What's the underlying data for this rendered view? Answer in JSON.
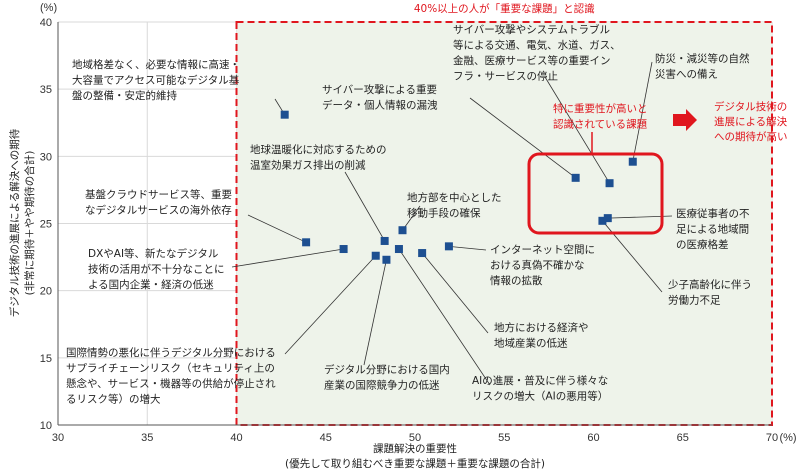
{
  "chart_data": {
    "type": "scatter",
    "xlabel_lines": [
      "課題解決の重要性",
      "(優先して取り組むべき重要な課題＋重要な課題の合計)"
    ],
    "ylabel_lines": [
      "デジタル技術の進展による解決への期待",
      "(非常に期待＋やや期待の合計)"
    ],
    "x_unit": "(%)",
    "y_unit": "(%)",
    "xlim": [
      30,
      70
    ],
    "ylim": [
      10,
      40
    ],
    "x_ticks": [
      "30",
      "35",
      "40",
      "45",
      "50",
      "55",
      "60",
      "65",
      "70"
    ],
    "y_ticks": [
      "10",
      "15",
      "20",
      "25",
      "30",
      "35",
      "40"
    ],
    "highlight_region_label": "40%以上の人が「重要な課題」と認識",
    "highlight_box_label": [
      "特に重要性が高いと",
      "認識されている課題"
    ],
    "arrow_label": [
      "デジタル技術の",
      "進展による解決",
      "への期待が高い"
    ],
    "points": [
      {
        "x": 42.7,
        "y": 33.1,
        "label": [
          "地域格差なく、必要な情報に高速・",
          "大容量でアクセス可能なデジタル基",
          "盤の整備・安定的維持"
        ]
      },
      {
        "x": 43.9,
        "y": 23.6,
        "label": [
          "基盤クラウドサービス等、重要",
          "なデジタルサービスの海外依存"
        ]
      },
      {
        "x": 46.0,
        "y": 23.1,
        "label": [
          "DXやAI等、新たなデジタル",
          "技術の活用が不十分なことに",
          "よる国内企業・経済の低迷"
        ]
      },
      {
        "x": 47.8,
        "y": 22.6,
        "label": [
          "国際情勢の悪化に伴うデジタル分野における",
          "サプライチェーンリスク（セキュリティ上の",
          "懸念や、サービス・機器等の供給が停止され",
          "るリスク等）の増大"
        ]
      },
      {
        "x": 48.3,
        "y": 23.7,
        "label": [
          "地球温暖化に対応するための",
          "温室効果ガス排出の削減"
        ]
      },
      {
        "x": 48.4,
        "y": 22.3,
        "label": [
          "デジタル分野における国内",
          "産業の国際競争力の低迷"
        ]
      },
      {
        "x": 49.1,
        "y": 23.1,
        "label": [
          "AIの進展・普及に伴う様々な",
          "リスクの増大（AIの悪用等）"
        ]
      },
      {
        "x": 49.3,
        "y": 24.5,
        "label": [
          "地方部を中心とした",
          "移動手段の確保"
        ]
      },
      {
        "x": 50.4,
        "y": 22.8,
        "label": [
          "地方における経済や",
          "地域産業の低迷"
        ]
      },
      {
        "x": 51.9,
        "y": 23.3,
        "label": [
          "インターネット空間に",
          "おける真偽不確かな",
          "情報の拡散"
        ]
      },
      {
        "x": 59.0,
        "y": 28.4,
        "label": [
          "サイバー攻撃による重要",
          "データ・個人情報の漏洩"
        ]
      },
      {
        "x": 60.5,
        "y": 25.2,
        "label": [
          "少子高齢化に伴う",
          "労働力不足"
        ]
      },
      {
        "x": 60.8,
        "y": 25.4,
        "label": [
          "医療従事者の不",
          "足による地域間",
          "の医療格差"
        ]
      },
      {
        "x": 60.9,
        "y": 28.0,
        "label": [
          "サイバー攻撃やシステムトラブル",
          "等による交通、電気、水道、ガス、",
          "金融、医療サービス等の重要イン",
          "フラ・サービスの停止"
        ]
      },
      {
        "x": 62.2,
        "y": 29.6,
        "label": [
          "防災・減災等の自然",
          "災害への備え"
        ]
      }
    ]
  },
  "colors": {
    "marker": "#1d4f91",
    "accent": "#e0161e",
    "region_fill": "#eef3ea",
    "grid": "#d9d9d9",
    "axis": "#555555"
  }
}
